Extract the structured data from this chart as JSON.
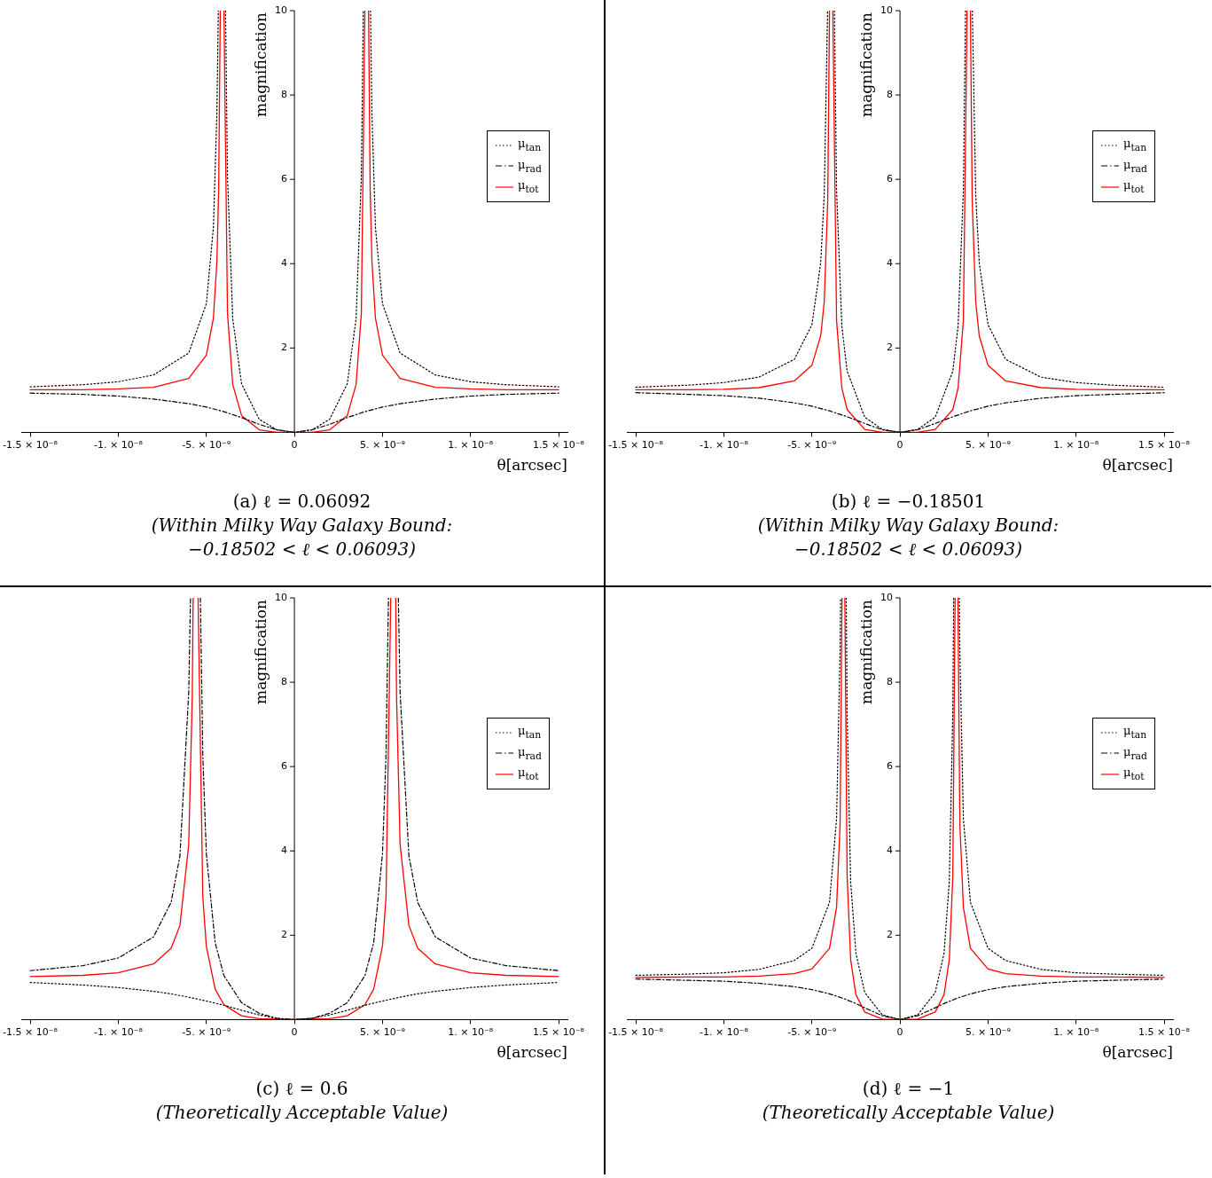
{
  "chart_data": [
    {
      "type": "line",
      "title": "(a) ℓ = 0.06092",
      "subtitle": "(Within Milky Way Galaxy Bound: −0.18502 < ℓ < 0.06093)",
      "xlabel": "θ[arcsec]",
      "ylabel": "magnification",
      "xlim": [
        -1.55e-08,
        1.55e-08
      ],
      "ylim": [
        0,
        10
      ],
      "xticks": [
        {
          "value": -1.5e-08,
          "label": "-1.5 × 10⁻⁸"
        },
        {
          "value": -1e-08,
          "label": "-1. × 10⁻⁸"
        },
        {
          "value": -5e-09,
          "label": "-5. × 10⁻⁹"
        },
        {
          "value": 0,
          "label": "0"
        },
        {
          "value": 5e-09,
          "label": "5. × 10⁻⁹"
        },
        {
          "value": 1e-08,
          "label": "1. × 10⁻⁸"
        },
        {
          "value": 1.5e-08,
          "label": "1.5 × 10⁻⁸"
        }
      ],
      "yticks": [
        2,
        4,
        6,
        8,
        10
      ],
      "legend": "top right",
      "series": [
        {
          "name": "μ$_{tan}$",
          "color": "#000000",
          "line_style": "dotted",
          "x": [
            -1.5e-08,
            -1.2e-08,
            -1e-08,
            -8e-09,
            -6e-09,
            -5e-09,
            -4.6e-09,
            -4.4e-09,
            -4.32e-09,
            -4.1e-09,
            -3.91e-09,
            -3.8e-09,
            -3.5e-09,
            -3e-09,
            -2e-09,
            -1e-09,
            0,
            1e-09,
            2e-09,
            3e-09,
            3.5e-09,
            3.8e-09,
            3.91e-09,
            4.1e-09,
            4.32e-09,
            4.4e-09,
            4.6e-09,
            5e-09,
            6e-09,
            8e-09,
            1e-08,
            1.2e-08,
            1.5e-08
          ],
          "values": [
            1.08,
            1.13,
            1.2,
            1.36,
            1.88,
            3.05,
            4.86,
            7.59,
            10,
            null,
            10,
            6.08,
            2.69,
            1.15,
            0.31,
            0.06,
            0,
            0.06,
            0.31,
            1.15,
            2.69,
            6.08,
            10,
            null,
            10,
            7.59,
            4.86,
            3.05,
            1.88,
            1.36,
            1.2,
            1.13,
            1.08
          ]
        },
        {
          "name": "μ$_{rad}$",
          "color": "#000000",
          "line_style": "dashdot",
          "x": [
            -1.5e-08,
            -1.2e-08,
            -1e-08,
            -8e-09,
            -6e-09,
            -5e-09,
            -4e-09,
            -3e-09,
            -2e-09,
            -1e-09,
            0,
            1e-09,
            2e-09,
            3e-09,
            4e-09,
            5e-09,
            6e-09,
            8e-09,
            1e-08,
            1.2e-08,
            1.5e-08
          ],
          "values": [
            0.93,
            0.9,
            0.86,
            0.79,
            0.68,
            0.6,
            0.49,
            0.35,
            0.19,
            0.06,
            0,
            0.06,
            0.19,
            0.35,
            0.49,
            0.6,
            0.68,
            0.79,
            0.86,
            0.9,
            0.93
          ]
        },
        {
          "name": "μ$_{tot}$",
          "color": "#ff0000",
          "line_style": "solid",
          "x": [
            -1.5e-08,
            -1.2e-08,
            -1e-08,
            -8e-09,
            -6e-09,
            -5e-09,
            -4.6e-09,
            -4.4e-09,
            -4.3e-09,
            -4.21e-09,
            -4.1e-09,
            -4e-09,
            -3.8e-09,
            -3.5e-09,
            -3e-09,
            -2e-09,
            -1e-09,
            0,
            1e-09,
            2e-09,
            3e-09,
            3.5e-09,
            3.8e-09,
            4e-09,
            4.1e-09,
            4.21e-09,
            4.3e-09,
            4.4e-09,
            4.6e-09,
            5e-09,
            6e-09,
            8e-09,
            1e-08,
            1.2e-08,
            1.5e-08
          ],
          "values": [
            1.01,
            1.01,
            1.03,
            1.07,
            1.28,
            1.83,
            2.71,
            4.06,
            5.77,
            10,
            null,
            10,
            2.82,
            1.13,
            0.4,
            0.06,
            0,
            0,
            0,
            0.06,
            0.4,
            1.13,
            2.82,
            10,
            null,
            10,
            5.77,
            4.06,
            2.71,
            1.83,
            1.28,
            1.07,
            1.03,
            1.01,
            1.01
          ]
        }
      ]
    },
    {
      "type": "line",
      "title": "(b) ℓ = −0.18501",
      "subtitle": "(Within Milky Way Galaxy Bound: −0.18502 < ℓ < 0.06093)",
      "xlabel": "θ[arcsec]",
      "ylabel": "magnification",
      "xlim": [
        -1.55e-08,
        1.55e-08
      ],
      "ylim": [
        0,
        10
      ],
      "xticks": [
        {
          "value": -1.5e-08,
          "label": "-1.5 × 10⁻⁸"
        },
        {
          "value": -1e-08,
          "label": "-1. × 10⁻⁸"
        },
        {
          "value": -5e-09,
          "label": "-5. × 10⁻⁹"
        },
        {
          "value": 0,
          "label": "0"
        },
        {
          "value": 5e-09,
          "label": "5. × 10⁻⁹"
        },
        {
          "value": 1e-08,
          "label": "1. × 10⁻⁸"
        },
        {
          "value": 1.5e-08,
          "label": "1.5 × 10⁻⁸"
        }
      ],
      "yticks": [
        2,
        4,
        6,
        8,
        10
      ],
      "legend": "top right",
      "series": [
        {
          "name": "μ$_{tan}$",
          "color": "#000000",
          "line_style": "dotted",
          "x": [
            -1.5e-08,
            -1.2e-08,
            -1e-08,
            -8e-09,
            -6e-09,
            -5e-09,
            -4.5e-09,
            -4.3e-09,
            -4.11e-09,
            -3.9e-09,
            -3.72e-09,
            -3.6e-09,
            -3.3e-09,
            -3e-09,
            -2e-09,
            -1e-09,
            0,
            1e-09,
            2e-09,
            3e-09,
            3.3e-09,
            3.6e-09,
            3.72e-09,
            3.9e-09,
            4.11e-09,
            4.3e-09,
            4.5e-09,
            5e-09,
            6e-09,
            8e-09,
            1e-08,
            1.2e-08,
            1.5e-08
          ],
          "values": [
            1.07,
            1.12,
            1.18,
            1.31,
            1.73,
            2.55,
            4.02,
            5.64,
            10,
            null,
            10,
            5.76,
            2.52,
            1.45,
            0.36,
            0.07,
            0,
            0.07,
            0.36,
            1.45,
            2.52,
            5.76,
            10,
            null,
            10,
            5.64,
            4.02,
            2.55,
            1.73,
            1.31,
            1.18,
            1.12,
            1.07
          ]
        },
        {
          "name": "μ$_{rad}$",
          "color": "#000000",
          "line_style": "dashdot",
          "x": [
            -1.5e-08,
            -1.2e-08,
            -1e-08,
            -8e-09,
            -6e-09,
            -5e-09,
            -4e-09,
            -3e-09,
            -2e-09,
            -1e-09,
            0,
            1e-09,
            2e-09,
            3e-09,
            4e-09,
            5e-09,
            6e-09,
            8e-09,
            1e-08,
            1.2e-08,
            1.5e-08
          ],
          "values": [
            0.94,
            0.9,
            0.87,
            0.81,
            0.7,
            0.62,
            0.51,
            0.37,
            0.21,
            0.06,
            0,
            0.06,
            0.21,
            0.37,
            0.51,
            0.62,
            0.7,
            0.81,
            0.87,
            0.9,
            0.94
          ]
        },
        {
          "name": "μ$_{tot}$",
          "color": "#ff0000",
          "line_style": "solid",
          "x": [
            -1.5e-08,
            -1.2e-08,
            -1e-08,
            -8e-09,
            -6e-09,
            -5e-09,
            -4.5e-09,
            -4.3e-09,
            -4.1e-09,
            -4e-09,
            -3.9e-09,
            -3.81e-09,
            -3.6e-09,
            -3.3e-09,
            -3e-09,
            -2e-09,
            -1e-09,
            0,
            1e-09,
            2e-09,
            3e-09,
            3.3e-09,
            3.6e-09,
            3.81e-09,
            3.9e-09,
            4e-09,
            4.1e-09,
            4.3e-09,
            4.5e-09,
            5e-09,
            6e-09,
            8e-09,
            1e-08,
            1.2e-08,
            1.5e-08
          ],
          "values": [
            1.01,
            1.01,
            1.02,
            1.06,
            1.22,
            1.59,
            2.29,
            3.09,
            5.51,
            10,
            null,
            10,
            2.65,
            1.05,
            0.54,
            0.07,
            0,
            0,
            0,
            0.07,
            0.54,
            1.05,
            2.65,
            10,
            null,
            10,
            5.51,
            3.09,
            2.29,
            1.59,
            1.22,
            1.06,
            1.02,
            1.01,
            1.01
          ]
        }
      ]
    },
    {
      "type": "line",
      "title": "(c) ℓ = 0.6",
      "subtitle": "(Theoretically Acceptable Value)",
      "xlabel": "θ[arcsec]",
      "ylabel": "magnification",
      "xlim": [
        -1.55e-08,
        1.55e-08
      ],
      "ylim": [
        0,
        10
      ],
      "xticks": [
        {
          "value": -1.5e-08,
          "label": "-1.5 × 10⁻⁸"
        },
        {
          "value": -1e-08,
          "label": "-1. × 10⁻⁸"
        },
        {
          "value": -5e-09,
          "label": "-5. × 10⁻⁹"
        },
        {
          "value": 0,
          "label": "0"
        },
        {
          "value": 5e-09,
          "label": "5. × 10⁻⁹"
        },
        {
          "value": 1e-08,
          "label": "1. × 10⁻⁸"
        },
        {
          "value": 1.5e-08,
          "label": "1.5 × 10⁻⁸"
        }
      ],
      "yticks": [
        2,
        4,
        6,
        8,
        10
      ],
      "legend": "top right",
      "series": [
        {
          "name": "μ$_{tan}$",
          "color": "#000000",
          "line_style": "dotted",
          "x": [
            -1.5e-08,
            -1.2e-08,
            -1e-08,
            -8e-09,
            -7e-09,
            -6e-09,
            -5e-09,
            -4e-09,
            -3e-09,
            -2e-09,
            -1e-09,
            0,
            1e-09,
            2e-09,
            3e-09,
            4e-09,
            5e-09,
            6e-09,
            7e-09,
            8e-09,
            1e-08,
            1.2e-08,
            1.5e-08
          ],
          "values": [
            0.88,
            0.82,
            0.76,
            0.67,
            0.61,
            0.53,
            0.44,
            0.34,
            0.22,
            0.11,
            0.03,
            0,
            0.03,
            0.11,
            0.22,
            0.34,
            0.44,
            0.53,
            0.61,
            0.67,
            0.76,
            0.82,
            0.88
          ]
        },
        {
          "name": "μ$_{rad}$",
          "color": "#000000",
          "line_style": "dashdot",
          "x": [
            -1.5e-08,
            -1.2e-08,
            -1e-08,
            -8e-09,
            -7e-09,
            -6.5e-09,
            -6e-09,
            -5.9e-09,
            -5.6e-09,
            -5.34e-09,
            -5.2e-09,
            -5e-09,
            -4.5e-09,
            -4e-09,
            -3e-09,
            -2e-09,
            -1e-09,
            0,
            1e-09,
            2e-09,
            3e-09,
            4e-09,
            4.5e-09,
            5e-09,
            5.2e-09,
            5.34e-09,
            5.6e-09,
            5.9e-09,
            6e-09,
            6.5e-09,
            7e-09,
            8e-09,
            1e-08,
            1.2e-08,
            1.5e-08
          ],
          "values": [
            1.16,
            1.28,
            1.46,
            1.96,
            2.78,
            3.88,
            7.76,
            10,
            null,
            10,
            6.26,
            3.93,
            1.82,
            1.04,
            0.4,
            0.15,
            0.03,
            0,
            0.03,
            0.15,
            0.4,
            1.04,
            1.82,
            3.93,
            6.26,
            10,
            null,
            10,
            7.76,
            3.88,
            2.78,
            1.96,
            1.46,
            1.28,
            1.16
          ]
        },
        {
          "name": "μ$_{tot}$",
          "color": "#ff0000",
          "line_style": "solid",
          "x": [
            -1.5e-08,
            -1.2e-08,
            -1e-08,
            -8e-09,
            -7e-09,
            -6.5e-09,
            -6e-09,
            -5.8e-09,
            -5.75e-09,
            -5.6e-09,
            -5.47e-09,
            -5.2e-09,
            -5e-09,
            -4.5e-09,
            -4e-09,
            -3e-09,
            -2e-09,
            0,
            2e-09,
            3e-09,
            4e-09,
            4.5e-09,
            5e-09,
            5.2e-09,
            5.47e-09,
            5.6e-09,
            5.75e-09,
            5.8e-09,
            6e-09,
            6.5e-09,
            7e-09,
            8e-09,
            1e-08,
            1.2e-08,
            1.5e-08
          ],
          "values": [
            1.02,
            1.05,
            1.11,
            1.32,
            1.69,
            2.23,
            4.15,
            7.63,
            10,
            null,
            10,
            2.9,
            1.74,
            0.72,
            0.35,
            0.09,
            0.02,
            0,
            0.02,
            0.09,
            0.35,
            0.72,
            1.74,
            2.9,
            10,
            null,
            10,
            7.63,
            4.15,
            2.23,
            1.69,
            1.32,
            1.11,
            1.05,
            1.02
          ]
        }
      ]
    },
    {
      "type": "line",
      "title": "(d) ℓ = −1",
      "subtitle": "(Theoretically Acceptable Value)",
      "xlabel": "θ[arcsec]",
      "ylabel": "magnification",
      "xlim": [
        -1.55e-08,
        1.55e-08
      ],
      "ylim": [
        0,
        10
      ],
      "xticks": [
        {
          "value": -1.5e-08,
          "label": "-1.5 × 10⁻⁸"
        },
        {
          "value": -1e-08,
          "label": "-1. × 10⁻⁸"
        },
        {
          "value": -5e-09,
          "label": "-5. × 10⁻⁹"
        },
        {
          "value": 0,
          "label": "0"
        },
        {
          "value": 5e-09,
          "label": "5. × 10⁻⁹"
        },
        {
          "value": 1e-08,
          "label": "1. × 10⁻⁸"
        },
        {
          "value": 1.5e-08,
          "label": "1.5 × 10⁻⁸"
        }
      ],
      "yticks": [
        2,
        4,
        6,
        8,
        10
      ],
      "legend": "top right",
      "series": [
        {
          "name": "μ$_{tan}$",
          "color": "#000000",
          "line_style": "dotted",
          "x": [
            -1.5e-08,
            -1.2e-08,
            -1e-08,
            -8e-09,
            -6e-09,
            -5e-09,
            -4e-09,
            -3.6e-09,
            -3.4e-09,
            -3.37e-09,
            -3.2e-09,
            -3.05e-09,
            -3e-09,
            -2.8e-09,
            -2.5e-09,
            -2e-09,
            -1e-09,
            0,
            1e-09,
            2e-09,
            2.5e-09,
            2.8e-09,
            3e-09,
            3.05e-09,
            3.2e-09,
            3.37e-09,
            3.4e-09,
            3.6e-09,
            4e-09,
            5e-09,
            6e-09,
            8e-09,
            1e-08,
            1.2e-08,
            1.5e-08
          ],
          "values": [
            1.05,
            1.08,
            1.11,
            1.19,
            1.4,
            1.69,
            2.78,
            4.76,
            8.76,
            10,
            null,
            10,
            7.26,
            3.27,
            1.57,
            0.64,
            0.11,
            0,
            0.11,
            0.64,
            1.57,
            3.27,
            7.26,
            10,
            null,
            10,
            8.76,
            4.76,
            2.78,
            1.69,
            1.4,
            1.19,
            1.11,
            1.08,
            1.05
          ]
        },
        {
          "name": "μ$_{rad}$",
          "color": "#000000",
          "line_style": "dashdot",
          "x": [
            -1.5e-08,
            -1.2e-08,
            -1e-08,
            -8e-09,
            -6e-09,
            -5e-09,
            -4e-09,
            -3.2e-09,
            -2.5e-09,
            -2e-09,
            -1e-09,
            0,
            1e-09,
            2e-09,
            2.5e-09,
            3.2e-09,
            4e-09,
            5e-09,
            6e-09,
            8e-09,
            1e-08,
            1.2e-08,
            1.5e-08
          ],
          "values": [
            0.96,
            0.93,
            0.91,
            0.86,
            0.78,
            0.71,
            0.61,
            0.5,
            0.38,
            0.28,
            0.09,
            0,
            0.09,
            0.28,
            0.38,
            0.5,
            0.61,
            0.71,
            0.78,
            0.86,
            0.91,
            0.93,
            0.96
          ]
        },
        {
          "name": "μ$_{tot}$",
          "color": "#ff0000",
          "line_style": "solid",
          "x": [
            -1.5e-08,
            -1.2e-08,
            -1e-08,
            -8e-09,
            -6e-09,
            -5e-09,
            -4e-09,
            -3.6e-09,
            -3.4e-09,
            -3.29e-09,
            -3.2e-09,
            -3.13e-09,
            -3e-09,
            -2.8e-09,
            -2.5e-09,
            -2e-09,
            -1e-09,
            0,
            1e-09,
            2e-09,
            2.5e-09,
            2.8e-09,
            3e-09,
            3.13e-09,
            3.2e-09,
            3.29e-09,
            3.4e-09,
            3.6e-09,
            4e-09,
            5e-09,
            6e-09,
            8e-09,
            1e-08,
            1.2e-08,
            1.5e-08
          ],
          "values": [
            1,
            1.01,
            1.01,
            1.03,
            1.09,
            1.2,
            1.69,
            2.66,
            4.64,
            10,
            null,
            10,
            3.39,
            1.42,
            0.59,
            0.18,
            0.01,
            0,
            0.01,
            0.18,
            0.59,
            1.42,
            3.39,
            10,
            null,
            10,
            4.64,
            2.66,
            1.69,
            1.2,
            1.09,
            1.03,
            1.01,
            1.01,
            1
          ]
        }
      ]
    }
  ]
}
